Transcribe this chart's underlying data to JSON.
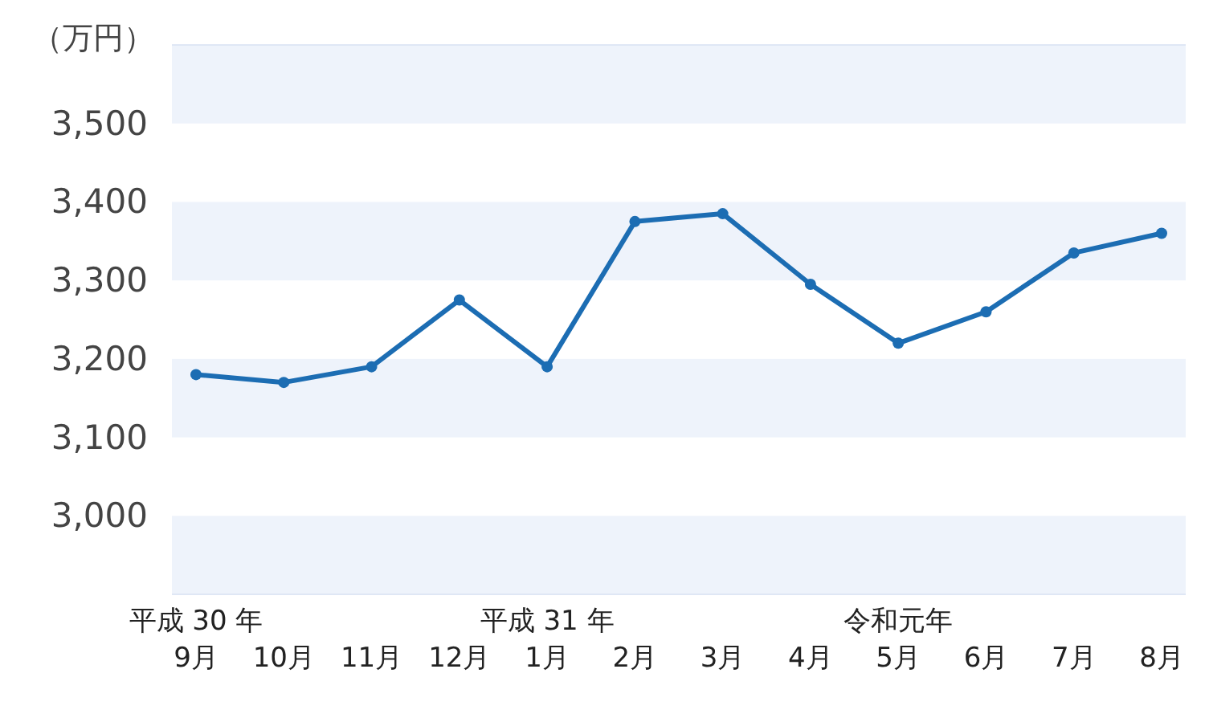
{
  "chart_data": {
    "type": "line",
    "ylabel": "（万円）",
    "categories": [
      "平成 30 年\n9月",
      "10月",
      "11月",
      "12月",
      "平成 31 年\n1月",
      "2月",
      "3月",
      "4月",
      "令和元年\n5月",
      "6月",
      "7月",
      "8月"
    ],
    "series": [
      {
        "color": "#1c6db3",
        "values": [
          3180,
          3170,
          3190,
          3275,
          3190,
          3375,
          3385,
          3295,
          3220,
          3260,
          3335,
          3360
        ]
      }
    ],
    "ylim": [
      2900,
      3600
    ],
    "yticks": [
      {
        "value": 3000,
        "label": "3,000"
      },
      {
        "value": 3100,
        "label": "3,100"
      },
      {
        "value": 3200,
        "label": "3,200"
      },
      {
        "value": 3300,
        "label": "3,300"
      },
      {
        "value": 3400,
        "label": "3,400"
      },
      {
        "value": 3500,
        "label": "3,500"
      }
    ],
    "bands": [
      {
        "axis": "y",
        "from": 2900,
        "to": 3000,
        "color": "#eef3fb"
      },
      {
        "axis": "y",
        "from": 3100,
        "to": 3200,
        "color": "#eef3fb"
      },
      {
        "axis": "y",
        "from": 3300,
        "to": 3400,
        "color": "#eef3fb"
      },
      {
        "axis": "y",
        "from": 3500,
        "to": 3600,
        "color": "#eef3fb"
      }
    ],
    "marker": "circle",
    "line_style": "solid",
    "grid": false
  }
}
